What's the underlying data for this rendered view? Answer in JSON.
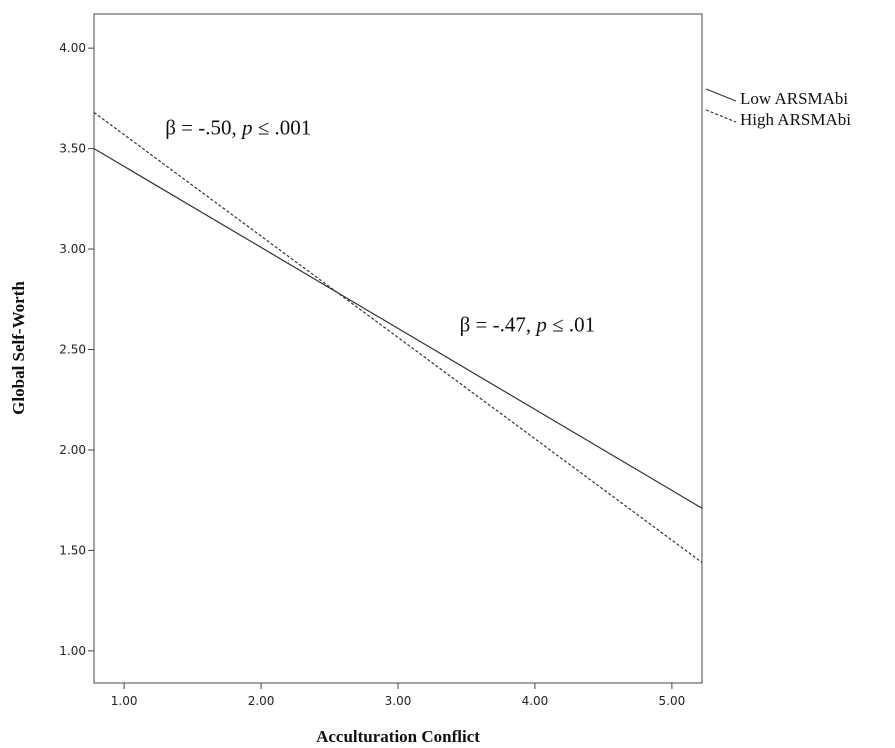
{
  "chart_data": {
    "type": "line",
    "xlabel": "Acculturation Conflict",
    "ylabel": "Global Self-Worth",
    "xlim": [
      0.78,
      5.22
    ],
    "ylim": [
      0.84,
      4.17
    ],
    "x_ticks": [
      "1.00",
      "2.00",
      "3.00",
      "4.00",
      "5.00"
    ],
    "y_ticks": [
      "1.00",
      "1.50",
      "2.00",
      "2.50",
      "3.00",
      "3.50",
      "4.00"
    ],
    "grid": false,
    "legend_position": "right",
    "series": [
      {
        "name": "Low ARSMAbi",
        "style": "solid",
        "x": [
          0.78,
          5.22
        ],
        "y": [
          3.5,
          1.71
        ]
      },
      {
        "name": "High ARSMAbi",
        "style": "dashed",
        "x": [
          0.78,
          5.22
        ],
        "y": [
          3.68,
          1.44
        ]
      }
    ],
    "annotations": [
      {
        "beta_text": "β = -.50, ",
        "p_letter": "p",
        "p_text": " ≤ .001",
        "x": 1.3,
        "y": 3.57
      },
      {
        "beta_text": "β = -.47, ",
        "p_letter": "p",
        "p_text": " ≤ .01",
        "x": 3.45,
        "y": 2.59
      }
    ],
    "colors": {
      "line": "#333333",
      "frame": "#444444"
    }
  }
}
